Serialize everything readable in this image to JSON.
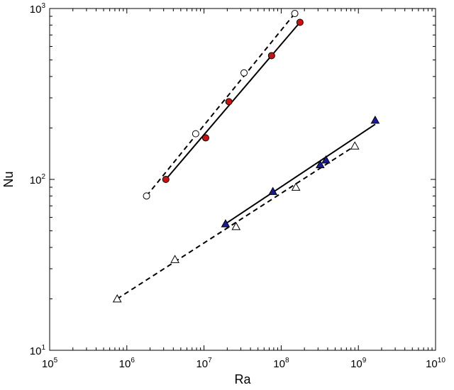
{
  "chart_data": {
    "type": "scatter",
    "title": "",
    "xlabel": "Ra",
    "ylabel": "Nu",
    "xscale": "log",
    "yscale": "log",
    "xlim": [
      100000,
      10000000000
    ],
    "ylim": [
      10,
      1000
    ],
    "x_ticks": [
      {
        "base": "10",
        "exp": "5",
        "value": 100000
      },
      {
        "base": "10",
        "exp": "6",
        "value": 1000000
      },
      {
        "base": "10",
        "exp": "7",
        "value": 10000000
      },
      {
        "base": "10",
        "exp": "8",
        "value": 100000000
      },
      {
        "base": "10",
        "exp": "9",
        "value": 1000000000
      },
      {
        "base": "10",
        "exp": "10",
        "value": 10000000000
      }
    ],
    "y_ticks": [
      {
        "base": "10",
        "exp": "1",
        "value": 10
      },
      {
        "base": "10",
        "exp": "2",
        "value": 100
      },
      {
        "base": "10",
        "exp": "3",
        "value": 1000
      }
    ],
    "grid": false,
    "legend": "none",
    "series": [
      {
        "marker": "circle-open",
        "line": "dashed",
        "color": "#000000",
        "fill": "#ffffff",
        "points": [
          {
            "x": 1800000,
            "y": 80
          },
          {
            "x": 7800000,
            "y": 185
          },
          {
            "x": 33000000,
            "y": 420
          },
          {
            "x": 150000000,
            "y": 935
          }
        ]
      },
      {
        "marker": "circle-filled",
        "line": "solid",
        "color": "#000000",
        "fill": "#cc1111",
        "points": [
          {
            "x": 3200000,
            "y": 100
          },
          {
            "x": 10500000,
            "y": 175
          },
          {
            "x": 21000000,
            "y": 285
          },
          {
            "x": 75000000,
            "y": 530
          },
          {
            "x": 175000000,
            "y": 830
          }
        ]
      },
      {
        "marker": "triangle-open",
        "line": "dashed",
        "color": "#000000",
        "fill": "#ffffff",
        "points": [
          {
            "x": 750000,
            "y": 20
          },
          {
            "x": 4200000,
            "y": 34
          },
          {
            "x": 26000000,
            "y": 53
          },
          {
            "x": 155000000,
            "y": 90
          },
          {
            "x": 900000000,
            "y": 157
          }
        ]
      },
      {
        "marker": "triangle-filled",
        "line": "solid",
        "color": "#000000",
        "fill": "#1a1a99",
        "points": [
          {
            "x": 19000000,
            "y": 55
          },
          {
            "x": 78000000,
            "y": 85
          },
          {
            "x": 320000000,
            "y": 122
          },
          {
            "x": 380000000,
            "y": 130
          },
          {
            "x": 1650000000,
            "y": 222
          }
        ]
      }
    ],
    "fit_lines": [
      {
        "style": "dashed",
        "from": {
          "x": 1800000,
          "y": 80
        },
        "to": {
          "x": 150000000,
          "y": 935
        }
      },
      {
        "style": "solid",
        "from": {
          "x": 3200000,
          "y": 100
        },
        "to": {
          "x": 175000000,
          "y": 830
        }
      },
      {
        "style": "dashed",
        "from": {
          "x": 750000,
          "y": 20
        },
        "to": {
          "x": 900000000,
          "y": 157
        }
      },
      {
        "style": "solid",
        "from": {
          "x": 19000000,
          "y": 55
        },
        "to": {
          "x": 1650000000,
          "y": 210
        }
      }
    ]
  }
}
